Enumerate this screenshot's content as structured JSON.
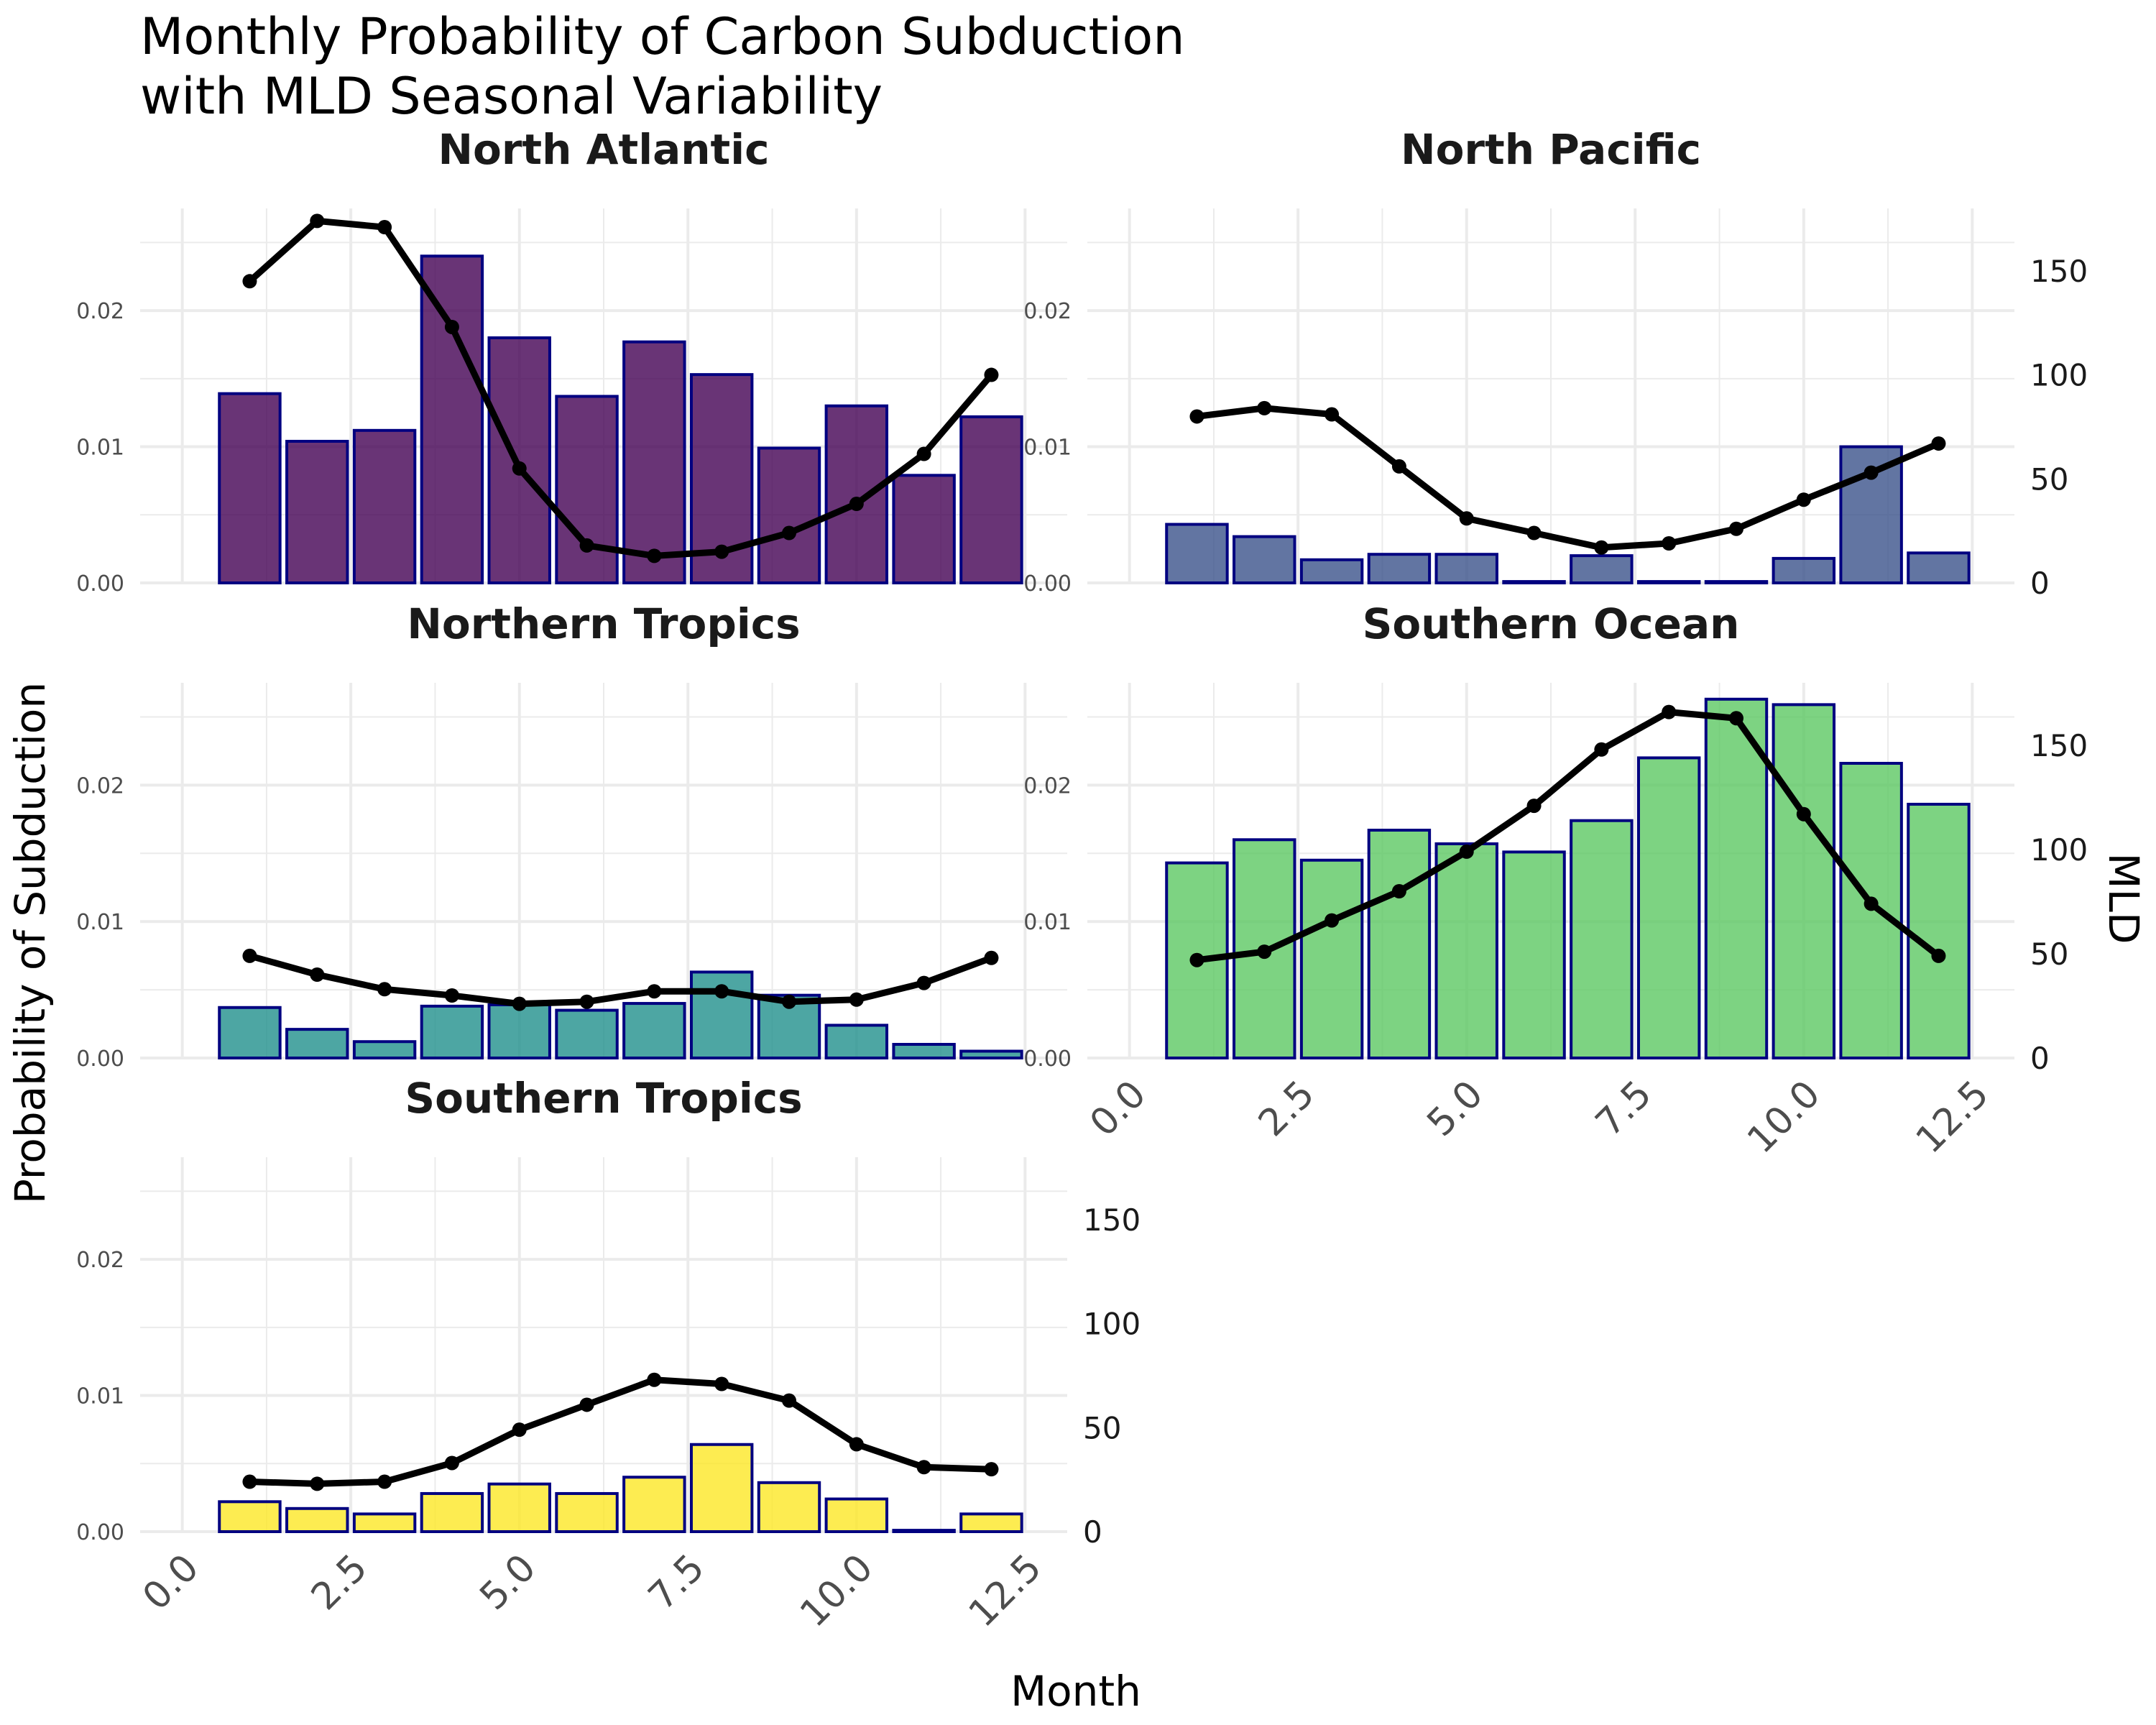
{
  "chart_data": {
    "type": "bar",
    "title": "Monthly Probability of Carbon Subduction\nwith MLD Seasonal Variability",
    "xlabel": "Month",
    "ylabel": "Probability of Subduction",
    "y2label": "MLD",
    "xlim": [
      0,
      12.5
    ],
    "ylim": [
      0,
      0.0275
    ],
    "y2lim": [
      0,
      180
    ],
    "x_ticks": [
      "0.0",
      "2.5",
      "5.0",
      "7.5",
      "10.0",
      "12.5"
    ],
    "y_ticks": [
      "0.00",
      "0.01",
      "0.02"
    ],
    "y2_ticks": [
      "0",
      "50",
      "100",
      "150"
    ],
    "months": [
      1,
      2,
      3,
      4,
      5,
      6,
      7,
      8,
      9,
      10,
      11,
      12
    ],
    "bar_outline_color": "#000080",
    "line_color": "#000000",
    "grid": true,
    "panels": [
      {
        "name": "North Atlantic",
        "fill": "#440154",
        "probability": [
          0.0139,
          0.0104,
          0.0112,
          0.024,
          0.018,
          0.0137,
          0.0177,
          0.0153,
          0.0099,
          0.013,
          0.0079,
          0.0122
        ],
        "mld": [
          145,
          174,
          171,
          123,
          55,
          18,
          13,
          15,
          24,
          38,
          62,
          100
        ]
      },
      {
        "name": "North Pacific",
        "fill": "#3B528B",
        "probability": [
          0.0043,
          0.0034,
          0.0017,
          0.0021,
          0.0021,
          0.0001,
          0.002,
          0.0001,
          0.0001,
          0.0018,
          0.01,
          0.0022
        ],
        "mld": [
          80,
          84,
          81,
          56,
          31,
          24,
          17,
          19,
          26,
          40,
          53,
          67
        ]
      },
      {
        "name": "Northern Tropics",
        "fill": "#21908C",
        "probability": [
          0.0037,
          0.0021,
          0.0012,
          0.0038,
          0.0039,
          0.0035,
          0.004,
          0.0063,
          0.0046,
          0.0024,
          0.001,
          0.0005
        ],
        "mld": [
          49,
          40,
          33,
          30,
          26,
          27,
          32,
          32,
          27,
          28,
          36,
          48
        ]
      },
      {
        "name": "Southern Ocean",
        "fill": "#5DC863",
        "probability": [
          0.0143,
          0.016,
          0.0145,
          0.0167,
          0.0157,
          0.0151,
          0.0174,
          0.022,
          0.0263,
          0.0259,
          0.0216,
          0.0186
        ],
        "mld": [
          47,
          51,
          66,
          80,
          99,
          121,
          148,
          166,
          163,
          117,
          74,
          49
        ]
      },
      {
        "name": "Southern Tropics",
        "fill": "#FDE725",
        "probability": [
          0.0022,
          0.0017,
          0.0013,
          0.0028,
          0.0035,
          0.0028,
          0.004,
          0.0064,
          0.0036,
          0.0024,
          0.0001,
          0.0013
        ],
        "mld": [
          24,
          23,
          24,
          33,
          49,
          61,
          73,
          71,
          63,
          42,
          31,
          30
        ]
      }
    ]
  }
}
